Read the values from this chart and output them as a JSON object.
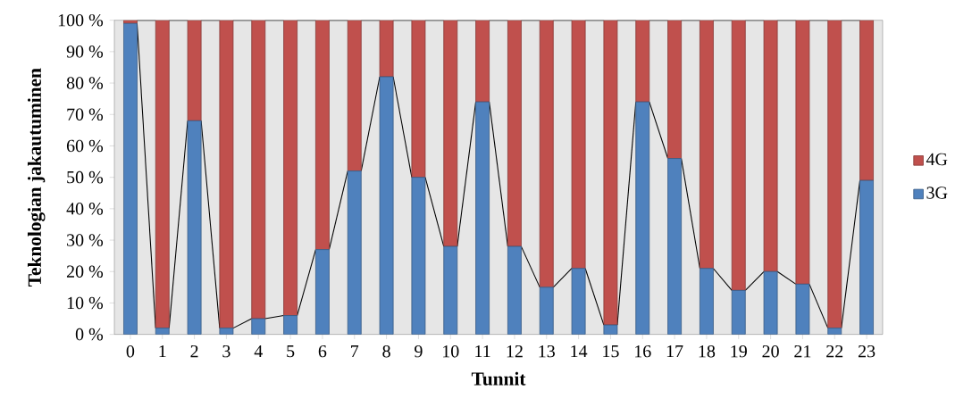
{
  "chart_data": {
    "type": "bar",
    "stacked": true,
    "xlabel": "Tunnit",
    "ylabel": "Teknologian jakautuminen",
    "categories": [
      "0",
      "1",
      "2",
      "3",
      "4",
      "5",
      "6",
      "7",
      "8",
      "9",
      "10",
      "11",
      "12",
      "13",
      "14",
      "15",
      "16",
      "17",
      "18",
      "19",
      "20",
      "21",
      "22",
      "23"
    ],
    "series": [
      {
        "name": "3G",
        "color": "#4f81bd",
        "values": [
          99,
          2,
          68,
          2,
          5,
          6,
          27,
          52,
          82,
          50,
          28,
          74,
          28,
          15,
          21,
          3,
          74,
          56,
          21,
          14,
          20,
          16,
          2,
          49
        ]
      },
      {
        "name": "4G",
        "color": "#c0504d",
        "values": [
          1,
          98,
          32,
          98,
          95,
          94,
          73,
          48,
          18,
          50,
          72,
          26,
          72,
          85,
          79,
          97,
          26,
          44,
          79,
          86,
          80,
          84,
          98,
          51
        ]
      }
    ],
    "ylim": [
      0,
      100
    ],
    "yticks": [
      {
        "value": 0,
        "label": "0 %"
      },
      {
        "value": 10,
        "label": "10 %"
      },
      {
        "value": 20,
        "label": "20 %"
      },
      {
        "value": 30,
        "label": "30 %"
      },
      {
        "value": 40,
        "label": "40 %"
      },
      {
        "value": 50,
        "label": "50 %"
      },
      {
        "value": 60,
        "label": "60 %"
      },
      {
        "value": 70,
        "label": "70 %"
      },
      {
        "value": 80,
        "label": "80 %"
      },
      {
        "value": 90,
        "label": "90 %"
      },
      {
        "value": 100,
        "label": "100 %"
      }
    ],
    "legend": "right"
  }
}
